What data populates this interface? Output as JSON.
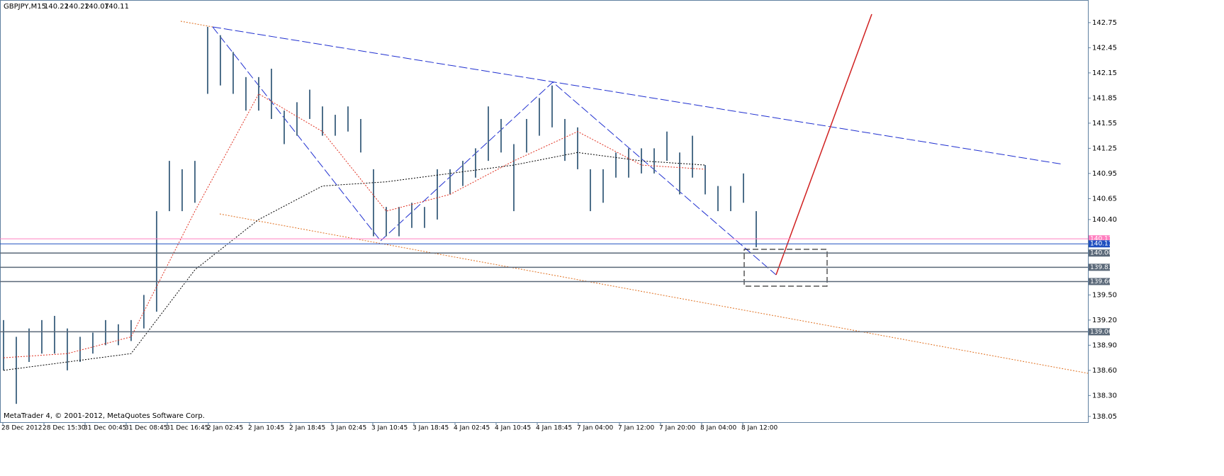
{
  "header": {
    "symbol": "GBPJPY,M15",
    "ohlc": [
      140.22,
      140.22,
      140.07,
      140.11
    ]
  },
  "footer": "MetaTrader 4, © 2001-2012, MetaQuotes Software Corp.",
  "chart_data": {
    "type": "ohlc",
    "ylim": [
      137.99,
      143.02
    ],
    "yticks": [
      142.75,
      142.45,
      142.15,
      141.85,
      141.55,
      141.25,
      140.95,
      140.65,
      {
        "value": 140.4,
        "label": "140.40"
      },
      {
        "value": 139.5,
        "label": "139.50"
      },
      {
        "value": 139.2,
        "label": "139.20"
      },
      {
        "value": 138.9,
        "label": "138.90"
      },
      {
        "value": 138.6,
        "label": "138.60"
      },
      {
        "value": 138.3,
        "label": "138.30"
      },
      138.05
    ],
    "time_labels": [
      "28 Dec 2012",
      "28 Dec 15:30",
      "31 Dec 00:45",
      "31 Dec 08:45",
      "31 Dec 16:45",
      "2 Jan 02:45",
      "2 Jan 10:45",
      "2 Jan 18:45",
      "3 Jan 02:45",
      "3 Jan 10:45",
      "3 Jan 18:45",
      "4 Jan 02:45",
      "4 Jan 10:45",
      "4 Jan 18:45",
      "7 Jan 04:00",
      "7 Jan 12:00",
      "7 Jan 20:00",
      "8 Jan 04:00",
      "8 Jan 12:00"
    ],
    "color": "#4e6f8a",
    "high": [
      139.2,
      139.0,
      139.1,
      139.2,
      139.25,
      139.1,
      139.0,
      139.05,
      139.2,
      139.15,
      139.2,
      139.5,
      140.5,
      141.1,
      141.0,
      141.1,
      142.7,
      142.6,
      142.4,
      142.1,
      142.1,
      142.2,
      141.7,
      141.8,
      141.95,
      141.75,
      141.65,
      141.75,
      141.6,
      141.0,
      140.55,
      140.55,
      140.6,
      140.55,
      141.0,
      141.0,
      141.1,
      141.25,
      141.75,
      141.6,
      141.3,
      141.6,
      141.85,
      142.0,
      141.6,
      141.5,
      141.0,
      141.0,
      141.2,
      141.25,
      141.25,
      141.25,
      141.45,
      141.2,
      141.4,
      141.05,
      140.8,
      140.8,
      140.95,
      140.5
    ],
    "low": [
      138.6,
      138.2,
      138.7,
      138.8,
      138.8,
      138.6,
      138.7,
      138.8,
      138.9,
      138.9,
      138.95,
      139.1,
      139.3,
      140.5,
      140.5,
      140.6,
      141.9,
      142.0,
      141.9,
      141.7,
      141.7,
      141.6,
      141.3,
      141.4,
      141.6,
      141.4,
      141.4,
      141.45,
      141.2,
      140.2,
      140.2,
      140.2,
      140.3,
      140.3,
      140.4,
      140.7,
      140.8,
      140.9,
      141.1,
      141.2,
      140.5,
      141.2,
      141.4,
      141.5,
      141.1,
      141.0,
      140.5,
      140.6,
      140.9,
      140.9,
      140.95,
      140.95,
      141.1,
      140.7,
      140.9,
      140.7,
      140.5,
      140.5,
      140.6,
      140.07
    ],
    "series": [
      {
        "color": "#000000",
        "values": [
          138.6,
          138.7,
          138.8,
          139.8,
          140.4,
          140.8,
          140.85,
          140.95,
          141.05,
          141.2,
          141.1,
          141.05
        ]
      },
      {
        "color": "#e03020",
        "values": [
          138.75,
          138.8,
          139.0,
          140.5,
          141.9,
          141.45,
          140.5,
          140.7,
          141.1,
          141.45,
          141.05,
          141.0
        ]
      }
    ],
    "levels": [
      140.17,
      140.11,
      {
        "value": 140,
        "label": "140.00"
      },
      139.83,
      139.66,
      139.06
    ],
    "level_colors": [
      "#ff80c0",
      "#2050c0",
      "#5a6878",
      "#5a6878",
      "#5a6878",
      "#5a6878"
    ]
  }
}
